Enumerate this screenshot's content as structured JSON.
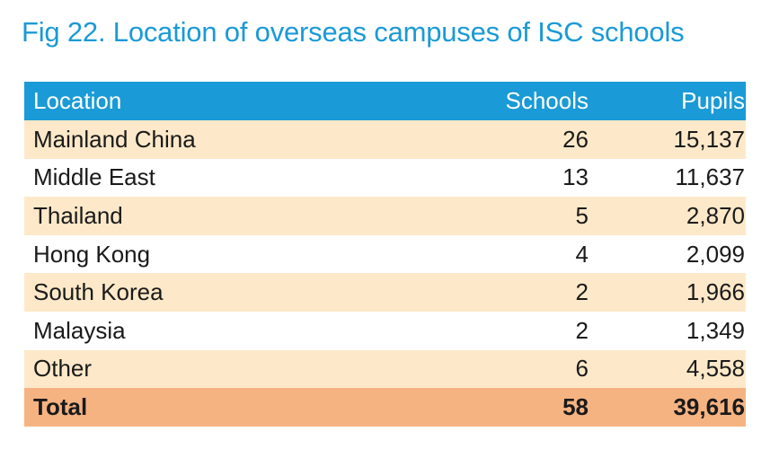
{
  "title": "Fig 22. Location of overseas campuses of ISC schools",
  "table": {
    "headers": {
      "location": "Location",
      "schools": "Schools",
      "pupils": "Pupils"
    },
    "rows": [
      {
        "location": "Mainland China",
        "schools": "26",
        "pupils": "15,137"
      },
      {
        "location": "Middle East",
        "schools": "13",
        "pupils": "11,637"
      },
      {
        "location": "Thailand",
        "schools": "5",
        "pupils": "2,870"
      },
      {
        "location": "Hong Kong",
        "schools": "4",
        "pupils": "2,099"
      },
      {
        "location": "South Korea",
        "schools": "2",
        "pupils": "1,966"
      },
      {
        "location": "Malaysia",
        "schools": "2",
        "pupils": "1,349"
      },
      {
        "location": "Other",
        "schools": "6",
        "pupils": "4,558"
      }
    ],
    "total": {
      "location": "Total",
      "schools": "58",
      "pupils": "39,616"
    }
  },
  "colors": {
    "title": "#1a9ad6",
    "header_bg": "#1a9ad6",
    "shade_row": "#fde9c9",
    "total_row": "#f6b382"
  }
}
